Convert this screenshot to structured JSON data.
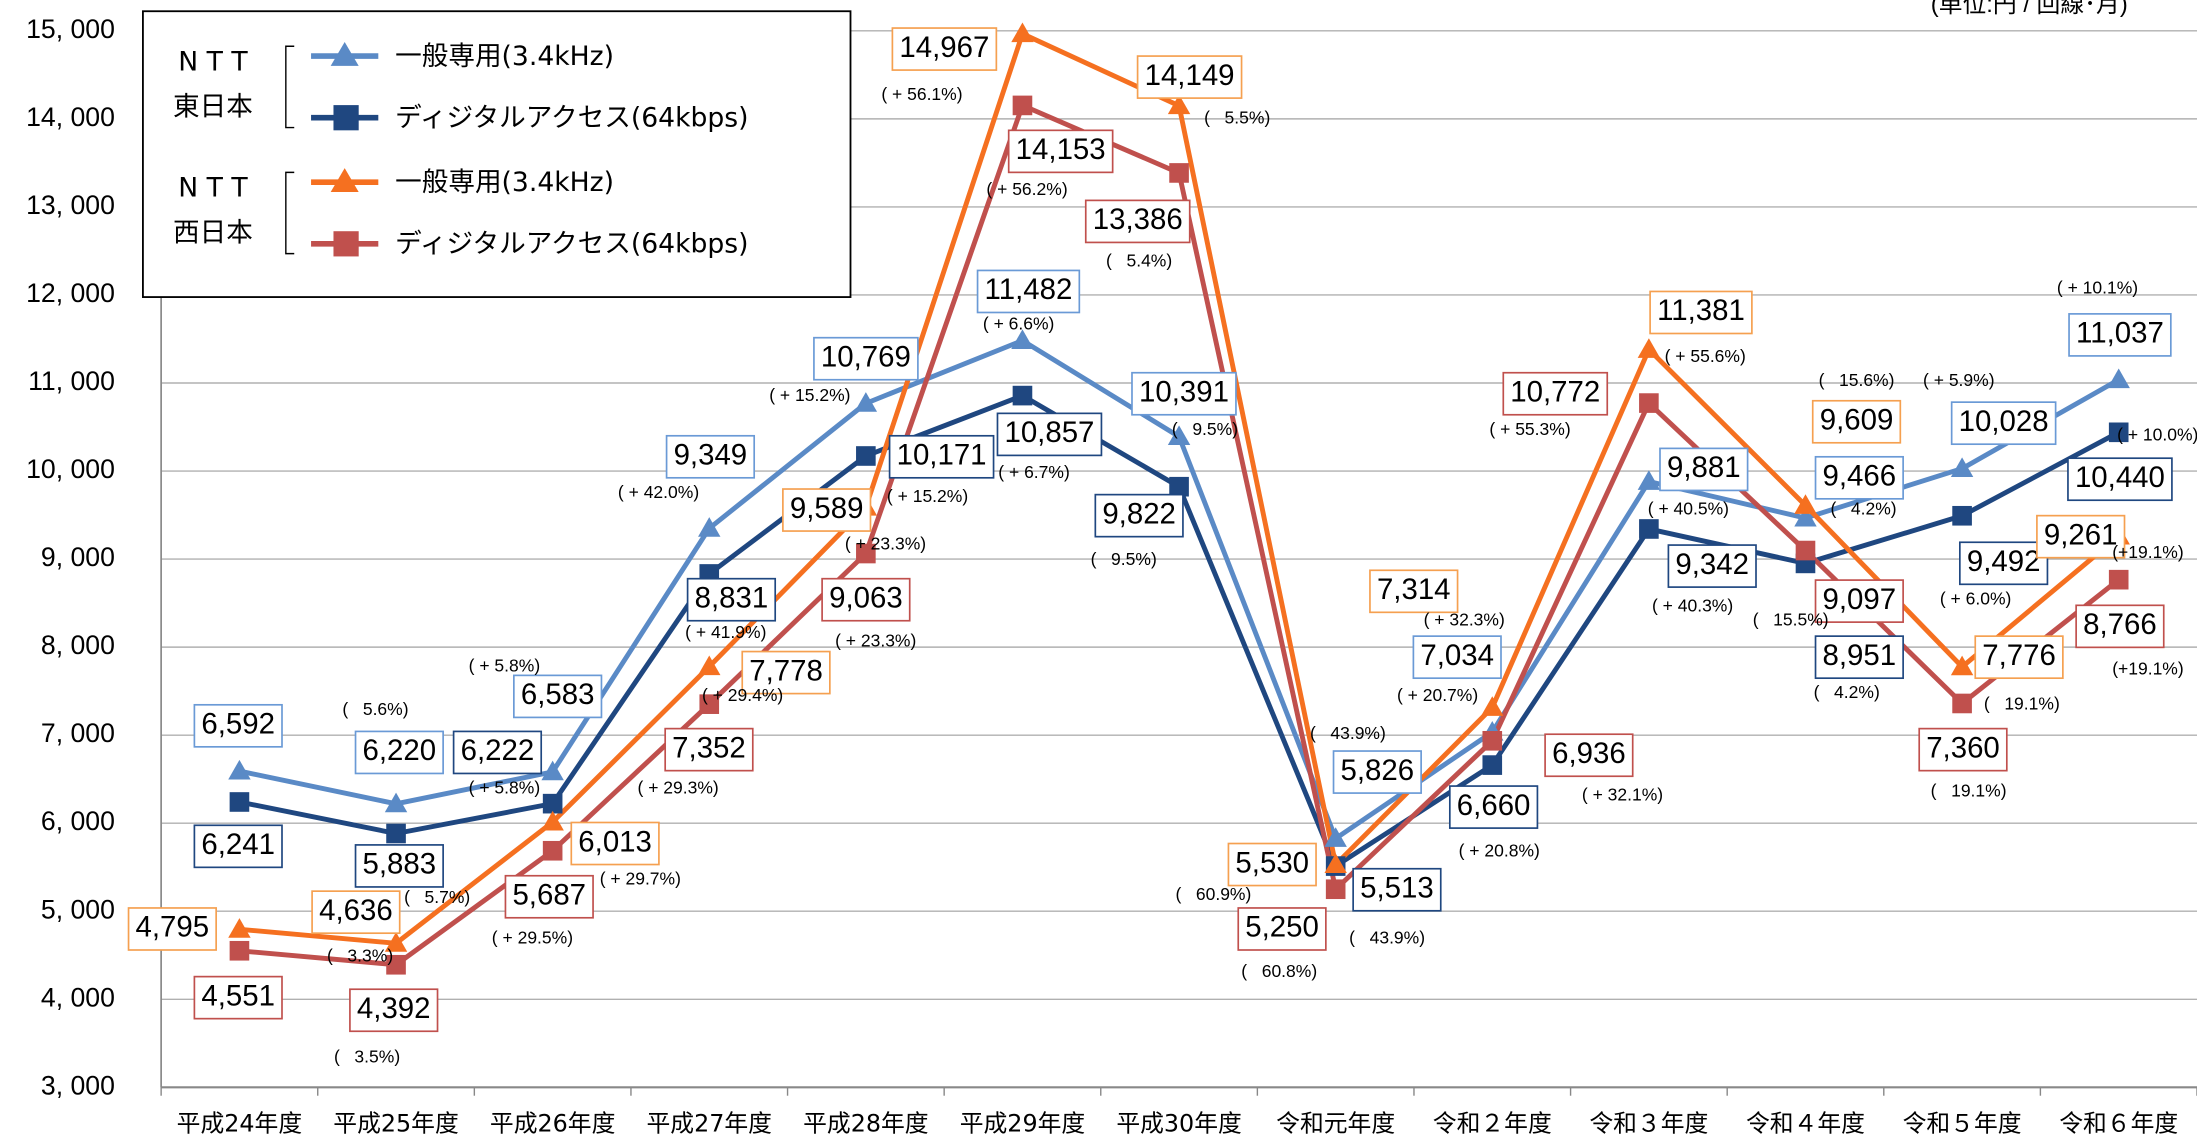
{
  "chart_data": {
    "type": "line",
    "unit_note": "(単位:円 / 回線･月)",
    "categories": [
      "平成24年度",
      "平成25年度",
      "平成26年度",
      "平成27年度",
      "平成28年度",
      "平成29年度",
      "平成30年度",
      "令和元年度",
      "令和２年度",
      "令和３年度",
      "令和４年度",
      "令和５年度",
      "令和６年度"
    ],
    "ylim": [
      3000,
      15000
    ],
    "yticks": [
      {
        "value": 3000,
        "label": "3, 000"
      },
      {
        "value": 4000,
        "label": "4, 000"
      },
      {
        "value": 5000,
        "label": "5, 000"
      },
      {
        "value": 6000,
        "label": "6, 000"
      },
      {
        "value": 7000,
        "label": "7, 000"
      },
      {
        "value": 8000,
        "label": "8, 000"
      },
      {
        "value": 9000,
        "label": "9, 000"
      },
      {
        "value": 10000,
        "label": "10, 000"
      },
      {
        "value": 11000,
        "label": "11, 000"
      },
      {
        "value": 12000,
        "label": "12, 000"
      },
      {
        "value": 13000,
        "label": "13, 000"
      },
      {
        "value": 14000,
        "label": "14, 000"
      },
      {
        "value": 15000,
        "label": "15, 000"
      }
    ],
    "grid": true,
    "legend_groups": [
      [
        "N T T",
        "東日本"
      ],
      [
        "N T T",
        "西日本"
      ]
    ],
    "series": [
      {
        "name": "一般専用(3.4kHz)",
        "color": "#5a8ac6",
        "box_color": "#6a9ad6",
        "marker": "triangle",
        "values": [
          6592,
          6220,
          6583,
          9349,
          10769,
          11482,
          10391,
          5826,
          7034,
          9881,
          9466,
          10028,
          11037
        ],
        "value_labels": [
          "6,592",
          "6,220",
          "6,583",
          "9,349",
          "10,769",
          "11,482",
          "10,391",
          "5,826",
          "7,034",
          "9,881",
          "9,466",
          "10,028",
          "11,037"
        ],
        "changes": [
          null,
          "(   5.6%)",
          "( + 5.8%)",
          "( + 42.0%)",
          "( + 15.2%)",
          "( + 6.6%)",
          "(   9.5%)",
          "(   43.9%)",
          "( + 20.7%)",
          "( + 40.5%)",
          "(   4.2%)",
          "( + 5.9%)",
          "( + 10.1%)"
        ]
      },
      {
        "name": "ディジタルアクセス(64kbps)",
        "color": "#1f4780",
        "box_color": "#1f4780",
        "marker": "square",
        "values": [
          6241,
          5883,
          6222,
          8831,
          10171,
          10857,
          9822,
          5513,
          6660,
          9342,
          8951,
          9492,
          10440
        ],
        "value_labels": [
          "6,241",
          "5,883",
          "6,222",
          "8,831",
          "10,171",
          "10,857",
          "9,822",
          "5,513",
          "6,660",
          "9,342",
          "8,951",
          "9,492",
          "10,440"
        ],
        "changes": [
          null,
          "(   5.7%)",
          "( + 5.8%)",
          "( + 41.9%)",
          "( + 15.2%)",
          "( + 6.7%)",
          "(   9.5%)",
          "(   43.9%)",
          "( + 20.8%)",
          "( + 40.3%)",
          "(   4.2%)",
          "( + 6.0%)",
          "( + 10.0%)"
        ]
      },
      {
        "name": "一般専用(3.4kHz)",
        "color": "#f57020",
        "box_color": "#f5a050",
        "marker": "triangle",
        "values": [
          4795,
          4636,
          6013,
          7778,
          9589,
          14967,
          14149,
          5530,
          7314,
          11381,
          9609,
          7776,
          9261
        ],
        "value_labels": [
          "4,795",
          "4,636",
          "6,013",
          "7,778",
          "9,589",
          "14,967",
          "14,149",
          "5,530",
          "7,314",
          "11,381",
          "9,609",
          "7,776",
          "9,261"
        ],
        "changes": [
          null,
          "(   3.3%)",
          "( + 29.7%)",
          "( + 29.4%)",
          "( + 23.3%)",
          "( + 56.1%)",
          "(   5.5%)",
          "(   60.9%)",
          "( + 32.3%)",
          "( + 55.6%)",
          "(   15.6%)",
          "(   19.1%)",
          "(+19.1%)"
        ]
      },
      {
        "name": "ディジタルアクセス(64kbps)",
        "color": "#c0504d",
        "box_color": "#c0504d",
        "marker": "square",
        "values": [
          4551,
          4392,
          5687,
          7352,
          9063,
          14153,
          13386,
          5250,
          6936,
          10772,
          9097,
          7360,
          8766
        ],
        "value_labels": [
          "4,551",
          "4,392",
          "5,687",
          "7,352",
          "9,063",
          "14,153",
          "13,386",
          "5,250",
          "6,936",
          "10,772",
          "9,097",
          "7,360",
          "8,766"
        ],
        "changes": [
          null,
          "(   3.5%)",
          "( + 29.5%)",
          "( + 29.3%)",
          "( + 23.3%)",
          "( + 56.2%)",
          "(   5.4%)",
          "(   60.8%)",
          "( + 32.1%)",
          "( + 55.3%)",
          "(   15.5%)",
          "(   19.1%)",
          "(+19.1%)"
        ]
      }
    ]
  }
}
